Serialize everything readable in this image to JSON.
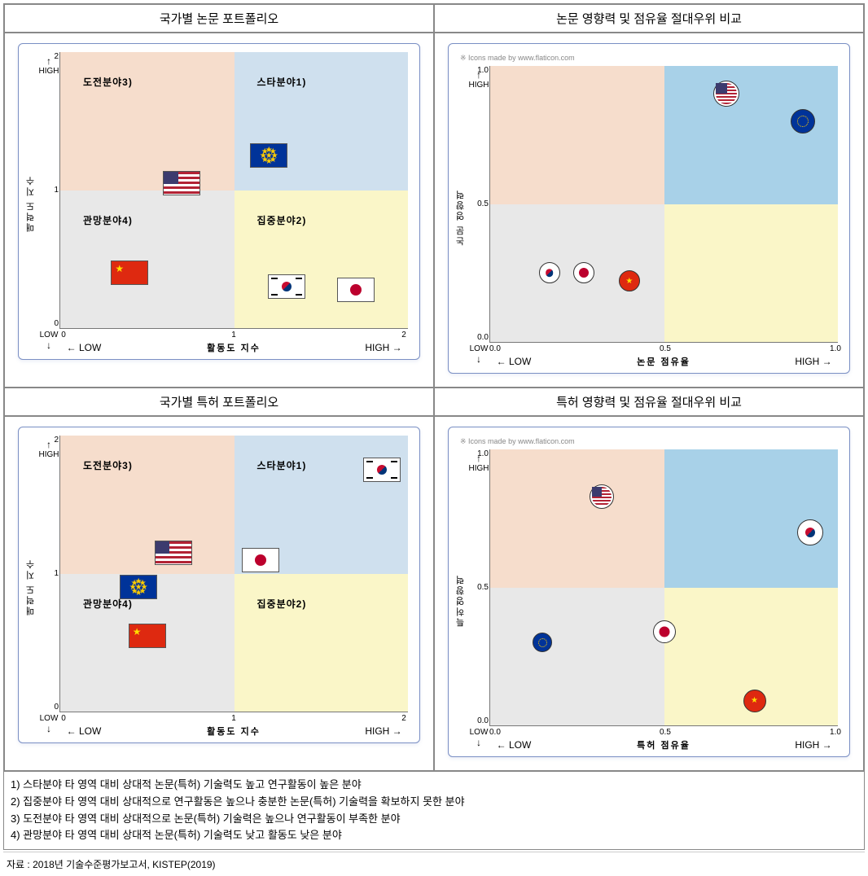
{
  "titles": {
    "tl": "국가별 논문 포트폴리오",
    "tr": "논문 영향력 및 점유율 절대우위 비교",
    "bl": "국가별 특허 포트폴리오",
    "br": "특허 영향력 및 점유율 절대우위 비교"
  },
  "portfolio_axes": {
    "y_label": "매력도 지수",
    "x_label": "활동도 지수",
    "y_high": "HIGH",
    "y_low": "LOW",
    "x_high": "HIGH",
    "x_low": "LOW",
    "ticks": [
      "0",
      "1",
      "2"
    ]
  },
  "compare_axes_paper": {
    "y_label": "논문 영향력",
    "x_label": "논문 점유율",
    "y_high": "HIGH",
    "y_low": "LOW",
    "x_high": "HIGH",
    "x_low": "LOW",
    "ticks": [
      "0.0",
      "0.5",
      "1.0"
    ]
  },
  "compare_axes_patent": {
    "y_label": "특허영향력",
    "x_label": "특허 점유율",
    "y_high": "HIGH",
    "y_low": "LOW",
    "x_high": "HIGH",
    "x_low": "LOW",
    "ticks": [
      "0.0",
      "0.5",
      "1.0"
    ]
  },
  "quadrant_labels": {
    "challenge": "도전분야3)",
    "star": "스타분야1)",
    "watch": "관망분야4)",
    "focus": "집중분야2)"
  },
  "quadrant_colors": {
    "tl": "#f6ddcc",
    "tr": "#cfe0ee",
    "bl": "#e8e8e8",
    "br": "#faf6c8"
  },
  "compare_colors": {
    "tl": "#f6ddcc",
    "tr": "#a8d1e8",
    "bl": "#e8e8e8",
    "br": "#faf6c8"
  },
  "chart_paper_portfolio": {
    "x_domain": [
      0,
      2
    ],
    "y_domain": [
      0,
      2
    ],
    "points": [
      {
        "country": "us",
        "x": 0.7,
        "y": 1.05
      },
      {
        "country": "eu",
        "x": 1.2,
        "y": 1.25
      },
      {
        "country": "cn",
        "x": 0.4,
        "y": 0.4
      },
      {
        "country": "kr",
        "x": 1.3,
        "y": 0.3
      },
      {
        "country": "jp",
        "x": 1.7,
        "y": 0.28
      }
    ]
  },
  "chart_patent_portfolio": {
    "x_domain": [
      0,
      2
    ],
    "y_domain": [
      0,
      2
    ],
    "points": [
      {
        "country": "kr",
        "x": 1.85,
        "y": 1.75
      },
      {
        "country": "jp",
        "x": 1.15,
        "y": 1.1
      },
      {
        "country": "us",
        "x": 0.65,
        "y": 1.15
      },
      {
        "country": "eu",
        "x": 0.45,
        "y": 0.9
      },
      {
        "country": "cn",
        "x": 0.5,
        "y": 0.55
      }
    ]
  },
  "chart_paper_compare": {
    "x_domain": [
      0,
      1
    ],
    "y_domain": [
      0,
      1
    ],
    "points": [
      {
        "country": "us",
        "x": 0.68,
        "y": 0.9,
        "size": 32
      },
      {
        "country": "eu",
        "x": 0.9,
        "y": 0.8,
        "size": 30
      },
      {
        "country": "kr",
        "x": 0.17,
        "y": 0.25,
        "size": 26
      },
      {
        "country": "jp",
        "x": 0.27,
        "y": 0.25,
        "size": 26
      },
      {
        "country": "cn",
        "x": 0.4,
        "y": 0.22,
        "size": 26
      }
    ]
  },
  "chart_patent_compare": {
    "x_domain": [
      0,
      1
    ],
    "y_domain": [
      0,
      1
    ],
    "points": [
      {
        "country": "us",
        "x": 0.32,
        "y": 0.83,
        "size": 30
      },
      {
        "country": "kr",
        "x": 0.92,
        "y": 0.7,
        "size": 32
      },
      {
        "country": "jp",
        "x": 0.5,
        "y": 0.34,
        "size": 28
      },
      {
        "country": "eu",
        "x": 0.15,
        "y": 0.3,
        "size": 24
      },
      {
        "country": "cn",
        "x": 0.76,
        "y": 0.09,
        "size": 28
      }
    ]
  },
  "attribution": "※ Icons made by www.flaticon.com",
  "notes": {
    "n1": "1) 스타분야 타 영역 대비 상대적 논문(특허) 기술력도 높고 연구활동이 높은 분야",
    "n2": "2) 집중분야 타 영역 대비 상대적으로 연구활동은 높으나 충분한 논문(특허) 기술력을 확보하지 못한 분야",
    "n3": "3) 도전분야 타 영역 대비 상대적으로 논문(특허) 기술력은 높으나 연구활동이 부족한 분야",
    "n4": "4) 관망분야 타 영역 대비 상대적 논문(특허) 기술력도 낮고 활동도 낮은 분야"
  },
  "source": "자료 : 2018년 기술수준평가보고서, KISTEP(2019)"
}
